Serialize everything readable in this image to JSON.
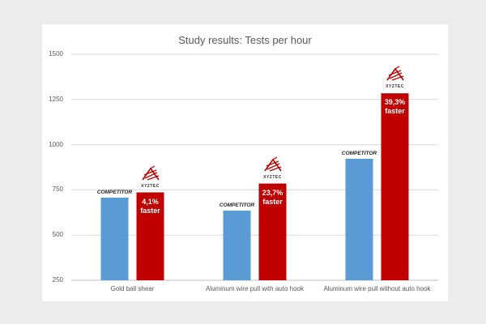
{
  "chart_data": {
    "type": "bar",
    "title": "Study results: Tests per hour",
    "categories": [
      "Gold ball shear",
      "Aluminum wire pull with auto hook",
      "Aluminum wire pull without auto hook"
    ],
    "series": [
      {
        "name": "COMPETITOR",
        "color": "#5b9bd5",
        "values": [
          707,
          635,
          922
        ]
      },
      {
        "name": "XYZTEC",
        "color": "#c00000",
        "values": [
          736,
          785,
          1284
        ]
      }
    ],
    "annotations": [
      {
        "pct": "4,1%",
        "word": "faster"
      },
      {
        "pct": "23,7%",
        "word": "faster"
      },
      {
        "pct": "39,3%",
        "word": "faster"
      }
    ],
    "competitor_label": "COMPETITOR",
    "logo_text": "XYZTEC",
    "ylim": [
      250,
      1500
    ],
    "yticks": [
      "250",
      "500",
      "750",
      "1000",
      "1250",
      "1500"
    ],
    "grid": true,
    "xlabel": "",
    "ylabel": ""
  }
}
